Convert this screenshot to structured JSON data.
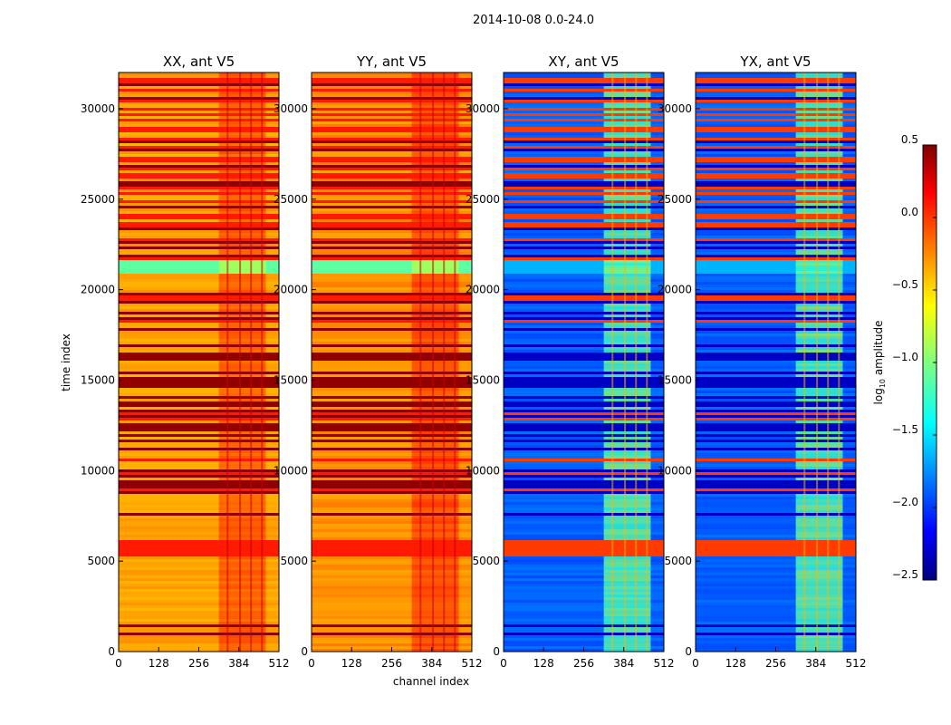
{
  "chart_data": {
    "type": "heatmap",
    "suptitle": "2014-10-08 0.0-24.0",
    "xlabel": "channel index",
    "ylabel": "time index",
    "xlim": [
      0,
      512
    ],
    "ylim": [
      0,
      32000
    ],
    "x_ticks": [
      0,
      128,
      256,
      384,
      512
    ],
    "x_tick_labels": [
      "0",
      "128",
      "256",
      "384",
      "512"
    ],
    "y_ticks": [
      0,
      5000,
      10000,
      15000,
      20000,
      25000,
      30000
    ],
    "y_tick_labels": [
      "0",
      "5000",
      "10000",
      "15000",
      "20000",
      "25000",
      "30000"
    ],
    "panels": [
      {
        "title": "XX, ant V5",
        "base_level": -0.35
      },
      {
        "title": "YY, ant V5",
        "base_level": -0.3
      },
      {
        "title": "XY, ant V5",
        "base_level": -1.85
      },
      {
        "title": "YX, ant V5",
        "base_level": -1.85
      }
    ],
    "colorbar": {
      "label": "log10 amplitude",
      "label_main": "log",
      "label_sub": "10",
      "label_rest": " amplitude",
      "range": [
        -2.5,
        0.5
      ],
      "ticks": [
        0.5,
        0.0,
        -0.5,
        -1.0,
        -1.5,
        -2.0,
        -2.5
      ],
      "tick_labels": [
        "0.5",
        "0.0",
        "−0.5",
        "−1.0",
        "−1.5",
        "−2.0",
        "−2.5"
      ],
      "colormap": "jet"
    }
  }
}
